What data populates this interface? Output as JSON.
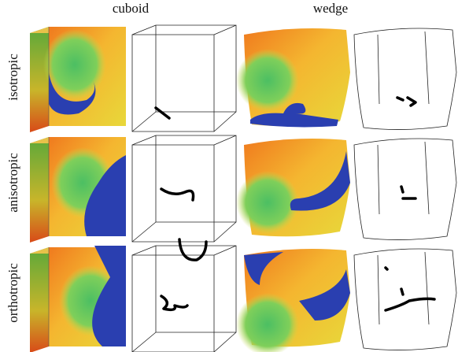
{
  "columns": [
    "cuboid",
    "wedge"
  ],
  "rows": [
    "isotropic",
    "anisotropic",
    "orthotropic"
  ]
}
